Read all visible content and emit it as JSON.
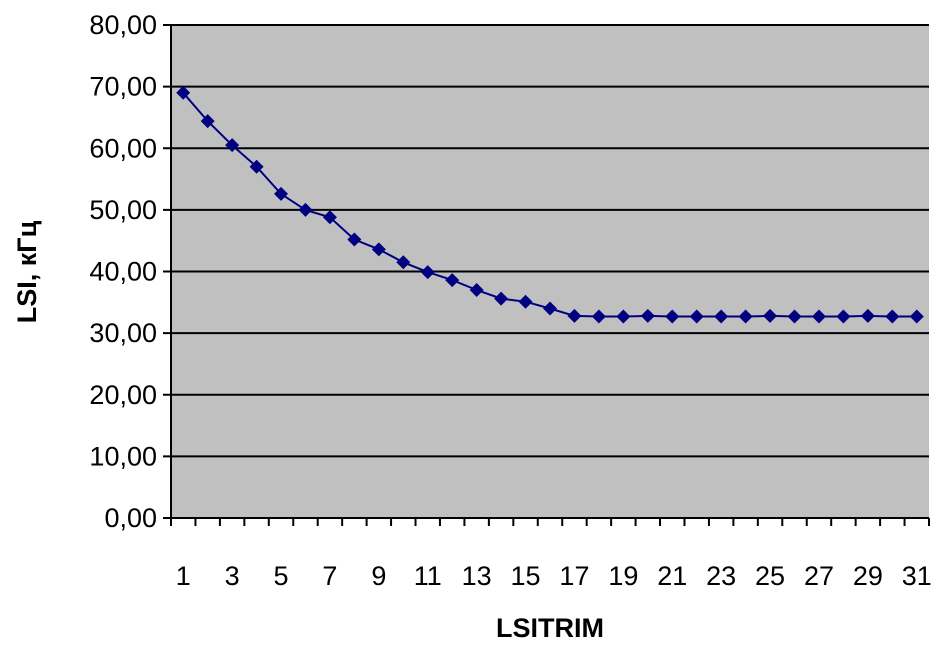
{
  "chart_data": {
    "type": "line",
    "title": "",
    "xlabel": "LSITRIM",
    "ylabel": "LSI, кГц",
    "ylim": [
      0,
      80
    ],
    "yticks": [
      "0,00",
      "10,00",
      "20,00",
      "30,00",
      "40,00",
      "50,00",
      "60,00",
      "70,00",
      "80,00"
    ],
    "xticks": [
      "1",
      "3",
      "5",
      "7",
      "9",
      "11",
      "13",
      "15",
      "17",
      "19",
      "21",
      "23",
      "25",
      "27",
      "29",
      "31"
    ],
    "grid": "horizontal",
    "legend": "none",
    "colors": {
      "plot_background": "#c0c0c0",
      "series_line": "#000080",
      "marker": "#000080",
      "grid": "#000000"
    },
    "marker_shape": "diamond",
    "x": [
      1,
      2,
      3,
      4,
      5,
      6,
      7,
      8,
      9,
      10,
      11,
      12,
      13,
      14,
      15,
      16,
      17,
      18,
      19,
      20,
      21,
      22,
      23,
      24,
      25,
      26,
      27,
      28,
      29,
      30,
      31
    ],
    "series": [
      {
        "values": [
          69.0,
          64.4,
          60.5,
          57.0,
          52.6,
          50.0,
          48.8,
          45.2,
          43.6,
          41.5,
          39.9,
          38.6,
          37.0,
          35.6,
          35.1,
          34.0,
          32.8,
          32.7,
          32.7,
          32.8,
          32.7,
          32.7,
          32.7,
          32.7,
          32.8,
          32.7,
          32.7,
          32.7,
          32.8,
          32.7,
          32.7
        ]
      }
    ]
  }
}
